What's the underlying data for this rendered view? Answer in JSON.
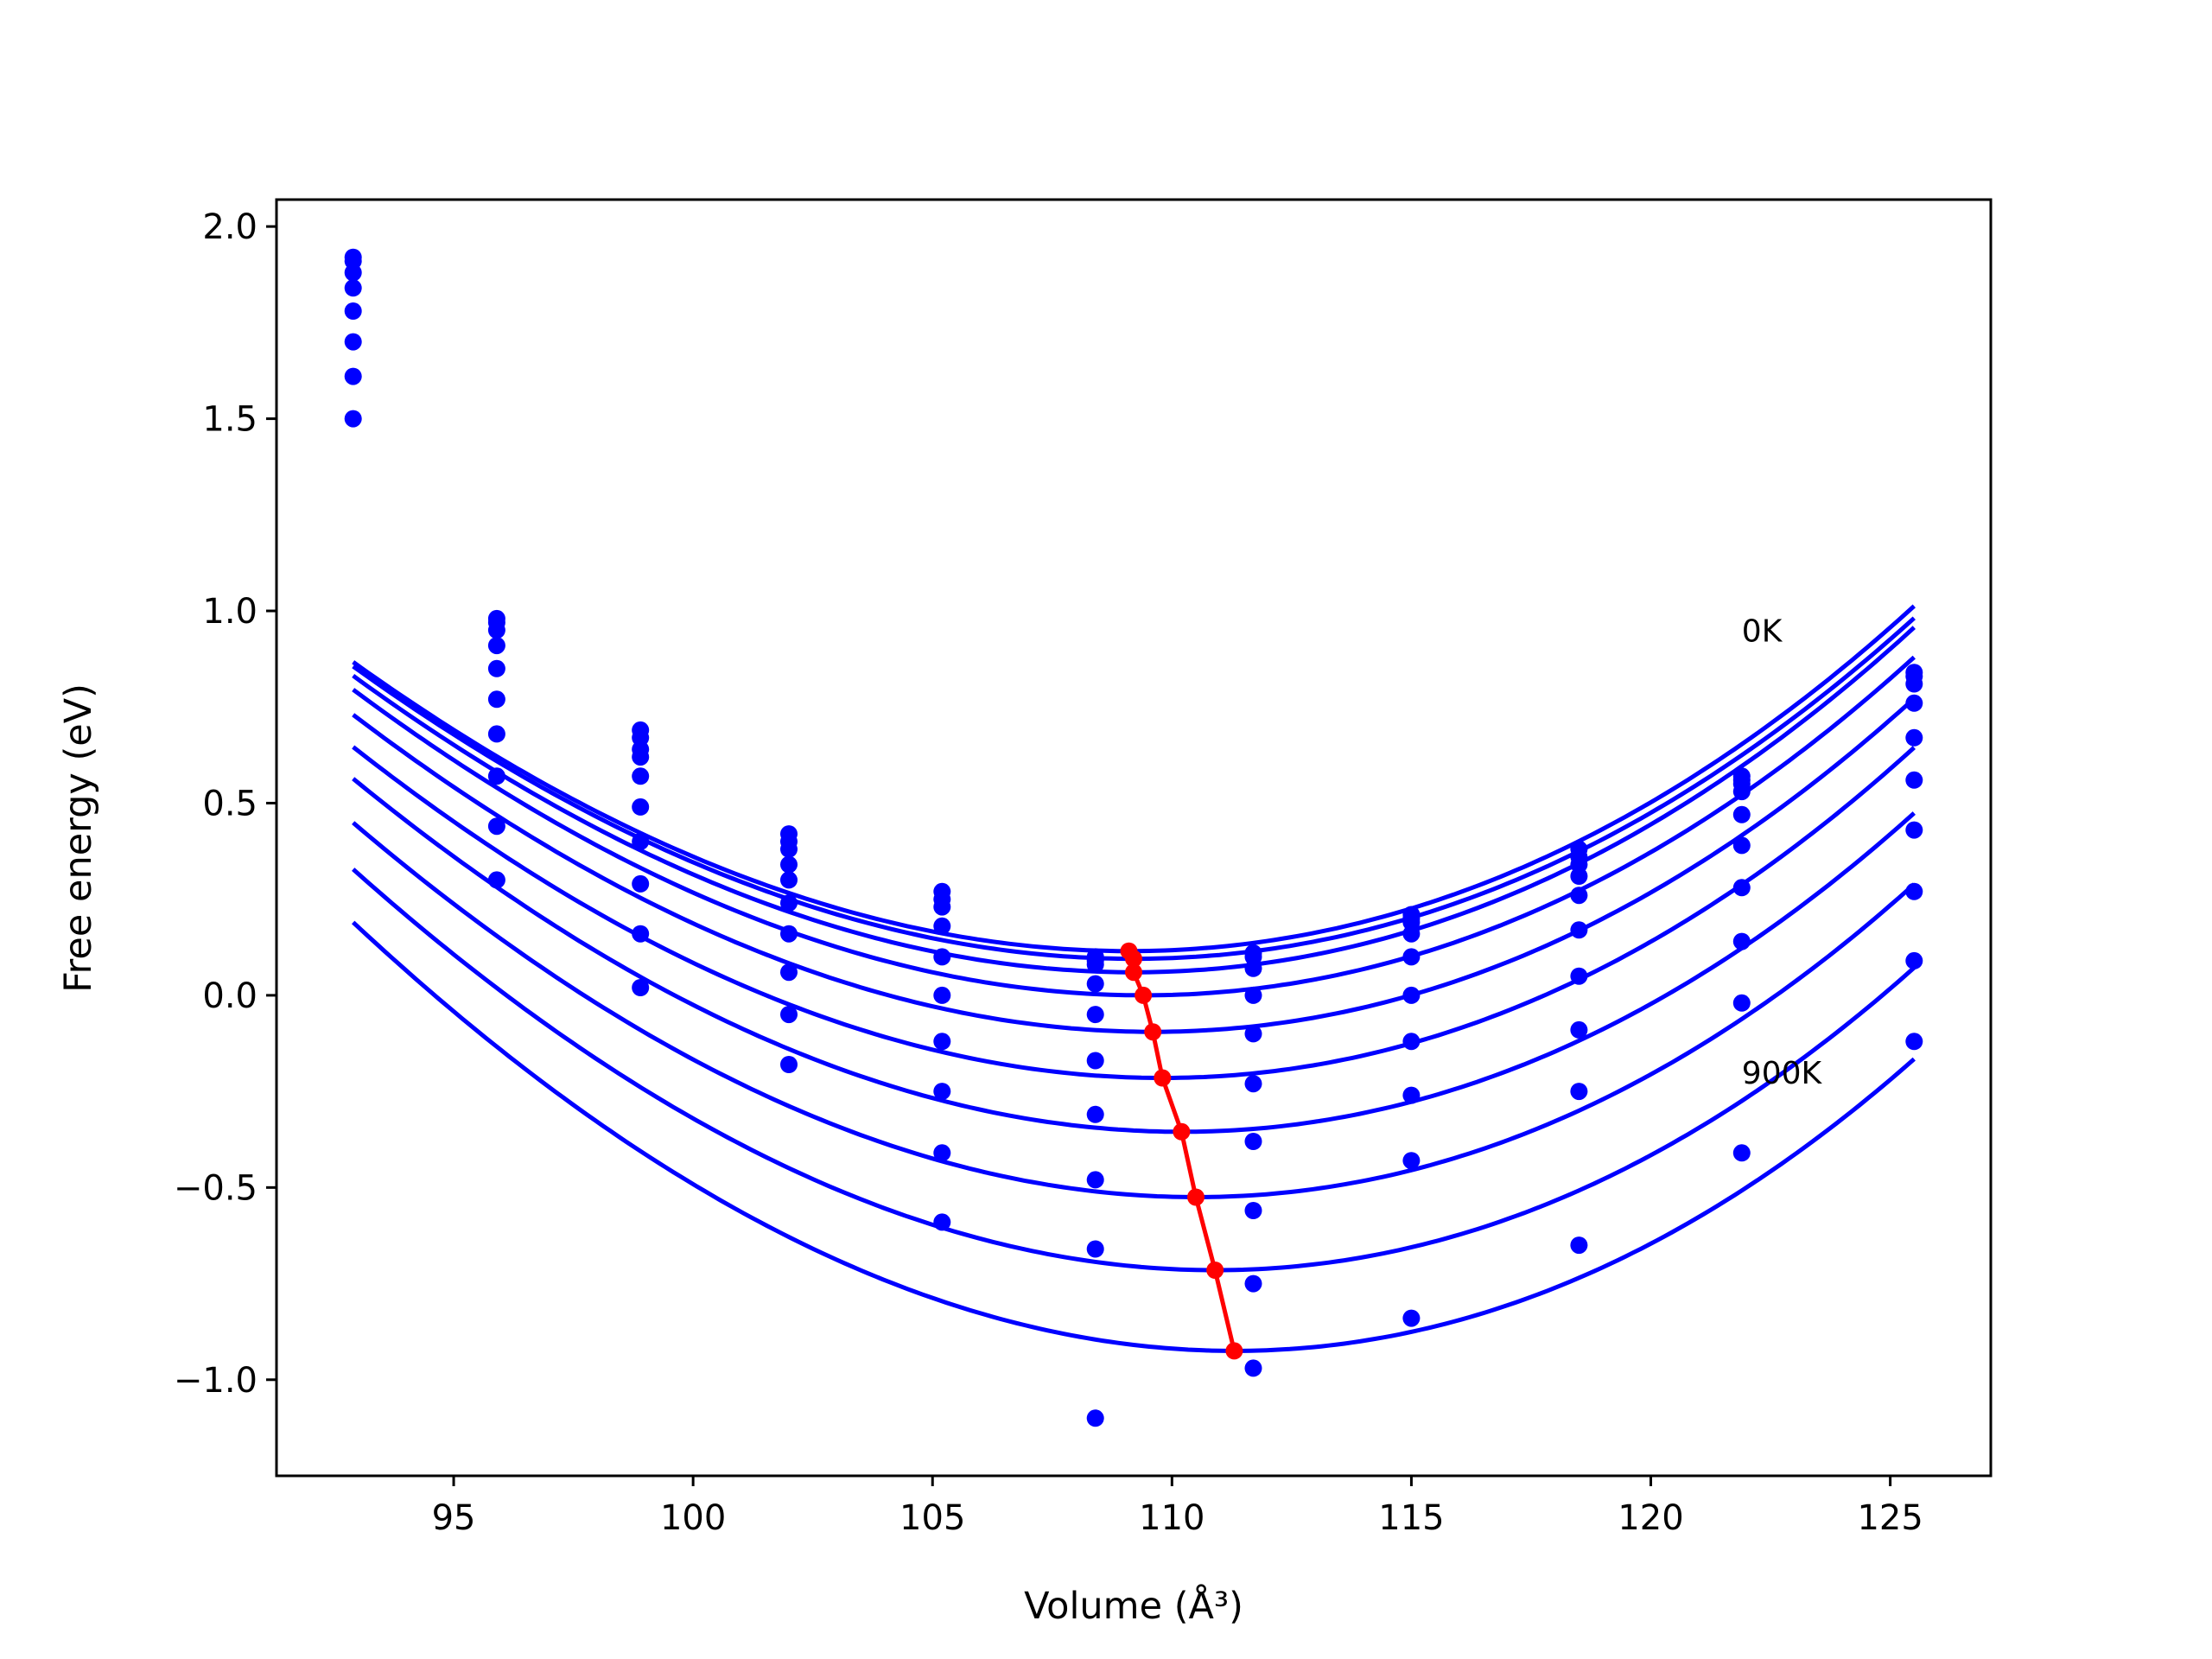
{
  "chart_data": {
    "type": "scatter",
    "title": "",
    "xlabel": "Volume (Å³)",
    "ylabel": "Free energy (eV)",
    "xlim": [
      91.3,
      127.1
    ],
    "ylim": [
      -1.25,
      2.07
    ],
    "xticks": [
      95,
      100,
      105,
      110,
      115,
      120,
      125
    ],
    "yticks": [
      -1.0,
      -0.5,
      0.0,
      0.5,
      1.0,
      1.5,
      2.0
    ],
    "xtick_labels": [
      "95",
      "100",
      "105",
      "110",
      "115",
      "120",
      "125"
    ],
    "ytick_labels": [
      "−1.0",
      "−0.5",
      "0.0",
      "0.5",
      "1.0",
      "1.5",
      "2.0"
    ],
    "grid": false,
    "legend": "none",
    "annotations": [
      {
        "text": "0K",
        "x": 121.9,
        "y": 0.92
      },
      {
        "text": "900K",
        "x": 121.9,
        "y": -0.23
      }
    ],
    "x_points": [
      92.9,
      95.9,
      98.9,
      102.0,
      105.2,
      108.4,
      111.7,
      115.0,
      118.5,
      121.9,
      125.5
    ],
    "fit_range": [
      92.9,
      125.5
    ],
    "colors": {
      "isotherm": "#0000ff",
      "minimum_path": "#ff0000"
    },
    "isotherms": [
      {
        "V0": 109.1,
        "E0": 0.115,
        "a": 0.0031,
        "b": 1.45e-05,
        "points": [
          1.92,
          0.98,
          0.69,
          0.42,
          0.27,
          0.1,
          0.11,
          0.21,
          0.38,
          0.57,
          0.84
        ]
      },
      {
        "V0": 109.2,
        "E0": 0.095,
        "a": 0.0031,
        "b": 1.45e-05,
        "points": [
          1.91,
          0.97,
          0.67,
          0.4,
          0.25,
          0.09,
          0.1,
          0.2,
          0.36,
          0.56,
          0.83
        ]
      },
      {
        "V0": 109.2,
        "E0": 0.06,
        "a": 0.00314,
        "b": 1.45e-05,
        "points": [
          1.88,
          0.95,
          0.64,
          0.38,
          0.23,
          0.08,
          0.07,
          0.19,
          0.34,
          0.55,
          0.81
        ]
      },
      {
        "V0": 109.4,
        "E0": 0.0,
        "a": 0.00316,
        "b": 1.45e-05,
        "points": [
          1.84,
          0.91,
          0.62,
          0.34,
          0.18,
          0.03,
          0.0,
          0.16,
          0.31,
          0.53,
          0.76
        ]
      },
      {
        "V0": 109.6,
        "E0": -0.095,
        "a": 0.0032,
        "b": 1.45e-05,
        "points": [
          1.78,
          0.85,
          0.57,
          0.3,
          0.1,
          -0.05,
          -0.1,
          0.1,
          0.26,
          0.47,
          0.67
        ]
      },
      {
        "V0": 109.8,
        "E0": -0.215,
        "a": 0.00326,
        "b": 1.45e-05,
        "points": [
          1.7,
          0.77,
          0.49,
          0.24,
          0.0,
          -0.17,
          -0.23,
          0.0,
          0.17,
          0.39,
          0.56
        ]
      },
      {
        "V0": 110.2,
        "E0": -0.355,
        "a": 0.00332,
        "b": 1.45e-05,
        "points": [
          1.61,
          0.68,
          0.4,
          0.16,
          -0.12,
          -0.31,
          -0.38,
          -0.12,
          0.05,
          0.28,
          0.43
        ]
      },
      {
        "V0": 110.5,
        "E0": -0.525,
        "a": 0.0034,
        "b": 1.45e-05,
        "points": [
          1.5,
          0.57,
          0.29,
          0.06,
          -0.25,
          -0.48,
          -0.56,
          -0.26,
          -0.09,
          0.14,
          0.27
        ]
      },
      {
        "V0": 110.9,
        "E0": -0.715,
        "a": 0.00348,
        "b": 1.45e-05,
        "points": [
          null,
          0.44,
          0.16,
          -0.05,
          -0.41,
          -0.66,
          -0.75,
          -0.43,
          -0.25,
          -0.02,
          0.09
        ]
      },
      {
        "V0": 111.3,
        "E0": -0.925,
        "a": 0.00356,
        "b": 1.45e-05,
        "points": [
          null,
          0.3,
          0.02,
          -0.18,
          -0.59,
          -1.1,
          -0.97,
          -0.84,
          -0.65,
          -0.41,
          -0.12
        ]
      }
    ]
  }
}
